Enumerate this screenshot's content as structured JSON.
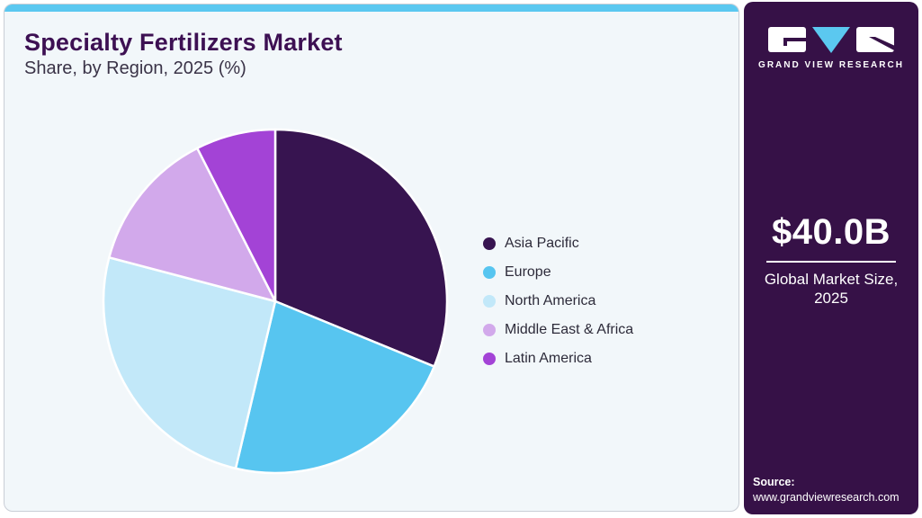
{
  "page": {
    "title": "Specialty Fertilizers Market",
    "subtitle": "Share, by Region, 2025 (%)"
  },
  "chart_data": {
    "type": "pie",
    "title": "Specialty Fertilizers Market Share, by Region, 2025 (%)",
    "categories": [
      "Asia Pacific",
      "Europe",
      "North America",
      "Middle East & Africa",
      "Latin America"
    ],
    "values": [
      31.2,
      22.5,
      25.4,
      13.4,
      7.5
    ],
    "unit": "%",
    "colors": [
      "#371450",
      "#57C5F0",
      "#C2E8F9",
      "#D2A9EB",
      "#A343D6"
    ],
    "start_angle_deg": 0,
    "direction": "clockwise",
    "slice_border_color": "#FFFFFF",
    "legend_position": "right"
  },
  "sidebar": {
    "brand_name": "GRAND VIEW RESEARCH",
    "market_size_value": "$40.0B",
    "market_size_label_line1": "Global Market Size,",
    "market_size_label_line2": "2025",
    "source_label": "Source:",
    "source_url": "www.grandviewresearch.com"
  },
  "theme": {
    "accent_blue": "#5BC8F0",
    "sidebar_bg": "#361147",
    "card_bg": "#F2F7FA",
    "title_color": "#3D1053"
  }
}
